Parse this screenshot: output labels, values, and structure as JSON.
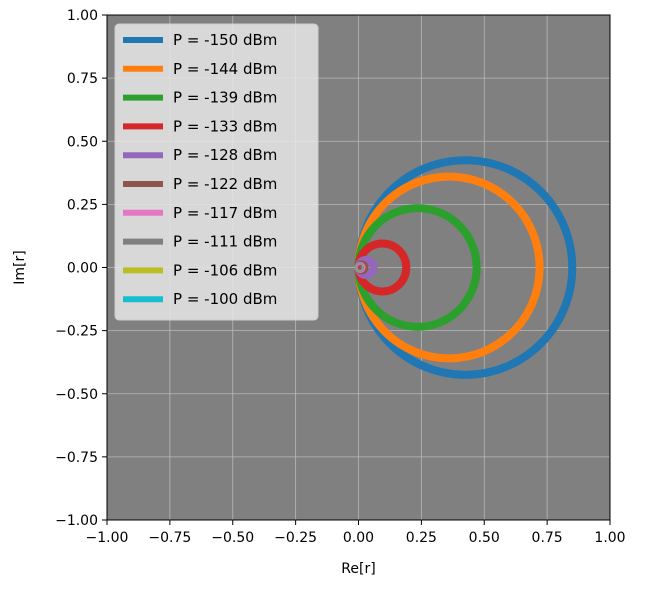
{
  "chart_data": {
    "type": "line",
    "title": "",
    "xlabel": "Re[r]",
    "ylabel": "Im[r]",
    "xlim": [
      -1.0,
      1.0
    ],
    "ylim": [
      -1.0,
      1.0
    ],
    "xticks": [
      "−1.00",
      "−0.75",
      "−0.50",
      "−0.25",
      "0.00",
      "0.25",
      "0.50",
      "0.75",
      "1.00"
    ],
    "yticks": [
      "1.00",
      "0.75",
      "0.50",
      "0.25",
      "0.00",
      "−0.25",
      "−0.50",
      "−0.75",
      "−1.00"
    ],
    "grid": true,
    "background": "#808080",
    "legend_position": "top-left",
    "series": [
      {
        "name": "P = -150 dBm",
        "color": "#1f77b4",
        "center": [
          0.425,
          0.0
        ],
        "radius": 0.425
      },
      {
        "name": "P = -144 dBm",
        "color": "#ff7f0e",
        "center": [
          0.36,
          0.0
        ],
        "radius": 0.36
      },
      {
        "name": "P = -139 dBm",
        "color": "#2ca02c",
        "center": [
          0.235,
          0.0
        ],
        "radius": 0.235
      },
      {
        "name": "P = -133 dBm",
        "color": "#d62728",
        "center": [
          0.095,
          0.0
        ],
        "radius": 0.095
      },
      {
        "name": "P = -128 dBm",
        "color": "#9467bd",
        "center": [
          0.03,
          0.0
        ],
        "radius": 0.03
      },
      {
        "name": "P = -122 dBm",
        "color": "#8c564b",
        "center": [
          0.012,
          0.0
        ],
        "radius": 0.012
      },
      {
        "name": "P = -117 dBm",
        "color": "#e377c2",
        "center": [
          0.006,
          0.0
        ],
        "radius": 0.006
      },
      {
        "name": "P = -111 dBm",
        "color": "#7f7f7f",
        "center": [
          0.003,
          0.0
        ],
        "radius": 0.003
      },
      {
        "name": "P = -106 dBm",
        "color": "#bcbd22",
        "center": [
          0.0015,
          0.0
        ],
        "radius": 0.0015
      },
      {
        "name": "P = -100 dBm",
        "color": "#17becf",
        "center": [
          0.0008,
          0.0
        ],
        "radius": 0.0008
      }
    ]
  }
}
